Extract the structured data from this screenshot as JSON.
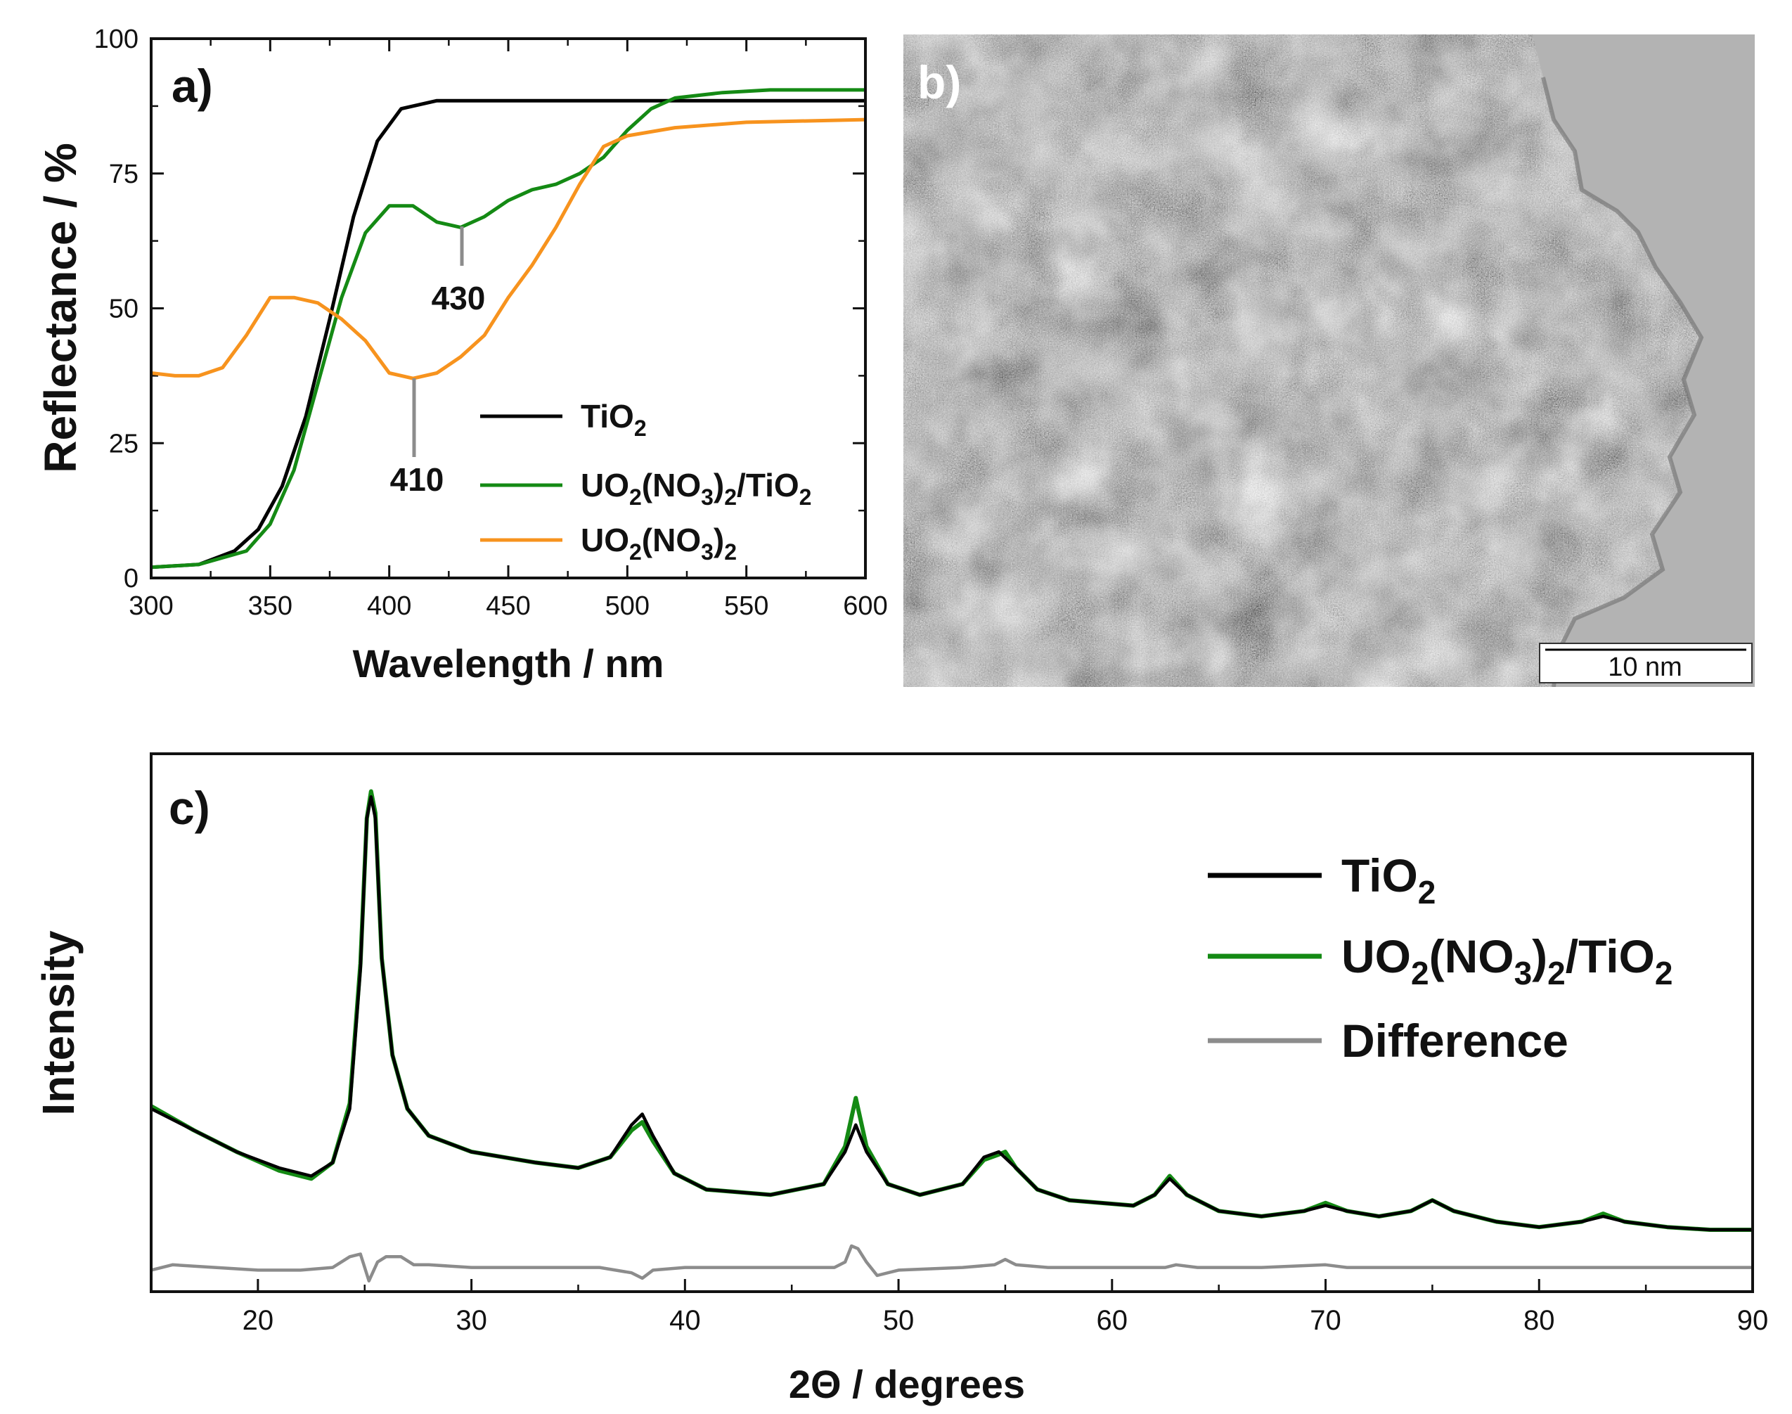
{
  "colors": {
    "black": "#000000",
    "green": "#148a14",
    "orange": "#f7931e",
    "gray": "#8c8c8c"
  },
  "chart_data": [
    {
      "id": "a",
      "panel_label": "a)",
      "type": "line",
      "xlabel": "Wavelength / nm",
      "ylabel": "Reflectance / %",
      "xlim": [
        300,
        600
      ],
      "ylim": [
        0,
        100
      ],
      "xticks": [
        "300",
        "350",
        "400",
        "450",
        "500",
        "550",
        "600"
      ],
      "yticks": [
        "0",
        "25",
        "50",
        "75",
        "100"
      ],
      "legend_position": "bottom-right",
      "annotations": [
        {
          "text": "430",
          "x": 430,
          "y": 65
        },
        {
          "text": "410",
          "x": 410,
          "y": 37
        }
      ],
      "series": [
        {
          "name": "TiO",
          "sub": "2",
          "color": "#000000",
          "x": [
            300,
            320,
            335,
            345,
            355,
            365,
            375,
            385,
            395,
            405,
            420,
            450,
            500,
            550,
            600
          ],
          "y": [
            2,
            2.5,
            5,
            9,
            17,
            30,
            48,
            67,
            81,
            87,
            88.5,
            88.5,
            88.5,
            88.5,
            88.5
          ]
        },
        {
          "name": "UO",
          "sub": "2(NO3)2/TiO2",
          "color": "#148a14",
          "x": [
            300,
            320,
            340,
            350,
            360,
            370,
            380,
            390,
            400,
            410,
            420,
            430,
            440,
            450,
            460,
            470,
            480,
            490,
            500,
            510,
            520,
            540,
            560,
            580,
            600
          ],
          "y": [
            2,
            2.5,
            5,
            10,
            20,
            36,
            52,
            64,
            69,
            69,
            66,
            65,
            67,
            70,
            72,
            73,
            75,
            78,
            83,
            87,
            89,
            90,
            90.5,
            90.5,
            90.5
          ]
        },
        {
          "name": "UO",
          "sub": "2(NO3)2",
          "color": "#f7931e",
          "x": [
            300,
            310,
            320,
            330,
            340,
            350,
            360,
            370,
            380,
            390,
            400,
            410,
            420,
            430,
            440,
            450,
            460,
            470,
            480,
            490,
            500,
            520,
            550,
            600
          ],
          "y": [
            38,
            37.5,
            37.5,
            39,
            45,
            52,
            52,
            51,
            48,
            44,
            38,
            37,
            38,
            41,
            45,
            52,
            58,
            65,
            73,
            80,
            82,
            83.5,
            84.5,
            85
          ]
        }
      ]
    },
    {
      "id": "b",
      "panel_label": "b)",
      "type": "image",
      "scale_bar": "10 nm"
    },
    {
      "id": "c",
      "panel_label": "c)",
      "type": "line",
      "xlabel": "2Θ / degrees",
      "ylabel": "Intensity",
      "xlim": [
        15,
        90
      ],
      "ylim": [
        0,
        100
      ],
      "xticks": [
        "20",
        "30",
        "40",
        "50",
        "60",
        "70",
        "80",
        "90"
      ],
      "legend_position": "top-right",
      "series": [
        {
          "name": "TiO",
          "sub": "2",
          "color": "#000000",
          "x": [
            15,
            17,
            19,
            21,
            22.5,
            23.5,
            24.3,
            24.8,
            25.1,
            25.3,
            25.5,
            25.8,
            26.3,
            27,
            28,
            30,
            33,
            35,
            36.5,
            37.5,
            38,
            38.5,
            39.5,
            41,
            44,
            46.5,
            47.5,
            48,
            48.5,
            49.5,
            51,
            53,
            54,
            54.7,
            55.5,
            56.5,
            58,
            61,
            62,
            62.7,
            63.5,
            65,
            67,
            69,
            70,
            71,
            72.5,
            74,
            75,
            76,
            78,
            80,
            82,
            83,
            84,
            86,
            88,
            90
          ],
          "y": [
            34,
            30,
            26,
            23,
            21.5,
            24,
            34,
            60,
            88,
            92,
            88,
            62,
            44,
            34,
            29,
            26,
            24,
            23,
            25,
            31,
            33,
            29,
            22,
            19,
            18,
            20,
            26,
            31,
            26,
            20,
            18,
            20,
            25,
            26,
            23,
            19,
            17,
            16,
            18,
            21,
            18,
            15,
            14,
            15,
            16,
            15,
            14,
            15,
            17,
            15,
            13,
            12,
            13,
            14,
            13,
            12,
            11.5,
            11.5
          ]
        },
        {
          "name": "UO",
          "sub": "2(NO3)2/TiO2",
          "color": "#148a14",
          "x": [
            15,
            17,
            19,
            21,
            22.5,
            23.5,
            24.3,
            24.8,
            25.1,
            25.3,
            25.5,
            25.8,
            26.3,
            27,
            28,
            30,
            33,
            35,
            36.5,
            37.5,
            38,
            38.5,
            39.5,
            41,
            44,
            46.5,
            47.5,
            48,
            48.5,
            49.5,
            51,
            53,
            54,
            54.7,
            55,
            55.5,
            56.5,
            58,
            61,
            62,
            62.7,
            63.5,
            65,
            67,
            69,
            70,
            71,
            72.5,
            74,
            75,
            76,
            78,
            80,
            82,
            83,
            84,
            86,
            88,
            90
          ],
          "y": [
            34.5,
            30,
            26,
            22.5,
            21,
            24,
            35,
            61,
            88,
            93,
            89,
            62,
            44,
            34,
            29,
            26,
            24,
            23,
            25,
            30,
            31.5,
            28,
            22,
            19,
            18,
            20,
            27,
            36,
            27,
            20,
            18,
            20,
            24.5,
            25.5,
            26,
            23,
            19,
            17,
            16,
            18,
            21.5,
            18,
            15,
            14,
            15,
            16.5,
            15,
            14,
            15,
            17,
            15,
            13,
            12,
            13,
            14.5,
            13,
            12,
            11.5,
            11.5
          ]
        },
        {
          "name": "Difference",
          "sub": "",
          "color": "#8c8c8c",
          "x": [
            15,
            16,
            18,
            20,
            22,
            23.5,
            24.3,
            24.8,
            25.2,
            25.6,
            26,
            26.7,
            27.3,
            28,
            30,
            33,
            36,
            37.5,
            38,
            38.5,
            40,
            44,
            47,
            47.5,
            47.8,
            48.1,
            48.5,
            49,
            50,
            53,
            54.5,
            55,
            55.5,
            57,
            60,
            62.5,
            63,
            64,
            67,
            70,
            71,
            74,
            78,
            82,
            86,
            90
          ],
          "y": [
            4,
            5,
            4.5,
            4,
            4,
            4.5,
            6.5,
            7,
            2,
            5.5,
            6.5,
            6.5,
            5,
            5,
            4.5,
            4.5,
            4.5,
            3.5,
            2.5,
            4,
            4.5,
            4.5,
            4.5,
            5.5,
            8.5,
            8,
            5.5,
            3,
            4,
            4.5,
            5,
            6,
            5,
            4.5,
            4.5,
            4.5,
            5,
            4.5,
            4.5,
            5,
            4.5,
            4.5,
            4.5,
            4.5,
            4.5,
            4.5
          ]
        }
      ]
    }
  ]
}
